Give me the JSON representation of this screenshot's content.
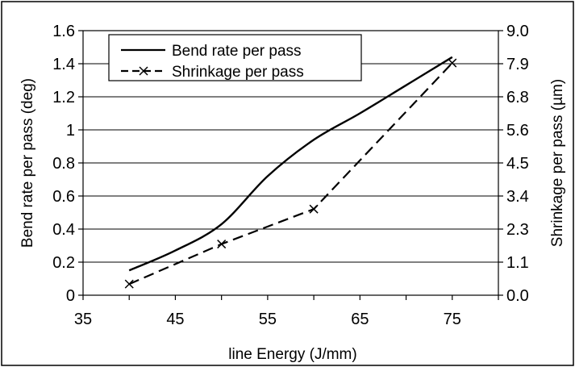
{
  "chart_data": {
    "type": "line",
    "title": "",
    "xlabel": "line Energy (J/mm)",
    "ylabel": "Bend rate per pass (deg)",
    "y2label": "Shrinkage per pass (µm)",
    "xlim": [
      35,
      80
    ],
    "ylim": [
      0,
      1.6
    ],
    "y2lim": [
      0,
      9
    ],
    "grid": true,
    "legend_position": "top-left",
    "x_ticks": [
      "35",
      "45",
      "55",
      "65",
      "75"
    ],
    "x_tick_values": [
      35,
      45,
      55,
      65,
      75
    ],
    "y_ticks": [
      "0",
      "0.2",
      "0.4",
      "0.6",
      "0.8",
      "1",
      "1.2",
      "1.4",
      "1.6"
    ],
    "y_tick_values": [
      0,
      0.2,
      0.4,
      0.6,
      0.8,
      1.0,
      1.2,
      1.4,
      1.6
    ],
    "y2_ticks": [
      "0.0",
      "1.1",
      "2.3",
      "3.4",
      "4.5",
      "5.6",
      "6.8",
      "7.9",
      "9.0"
    ],
    "y2_tick_values": [
      0,
      1.125,
      2.25,
      3.375,
      4.5,
      5.625,
      6.75,
      7.875,
      9.0
    ],
    "series": [
      {
        "name": "Bend rate per pass",
        "axis": "left",
        "style": "solid",
        "marker": "none",
        "x": [
          40,
          45,
          50,
          55,
          60,
          65,
          70,
          75
        ],
        "y": [
          0.15,
          0.27,
          0.43,
          0.72,
          0.94,
          1.1,
          1.27,
          1.44
        ]
      },
      {
        "name": "Shrinkage per pass",
        "axis": "right",
        "style": "dashed",
        "marker": "x",
        "x": [
          40,
          50,
          60,
          75
        ],
        "y": [
          0.38,
          1.74,
          2.93,
          7.9
        ]
      }
    ]
  }
}
